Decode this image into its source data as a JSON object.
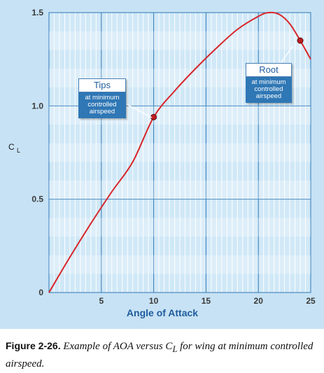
{
  "chart_data": {
    "type": "line",
    "xlabel": "Angle of Attack",
    "ylabel": "CL",
    "ylabel_main": "C",
    "ylabel_sub": "L",
    "xlim": [
      0,
      25
    ],
    "ylim": [
      0,
      1.5
    ],
    "x_ticks": [
      5,
      10,
      15,
      20,
      25
    ],
    "y_ticks": [
      0,
      0.5,
      1.0,
      1.5
    ],
    "x_tick_labels": [
      "5",
      "10",
      "15",
      "20",
      "25"
    ],
    "y_tick_labels": [
      "0",
      "0.5",
      "1.0",
      "1.5"
    ],
    "grid": true,
    "curve_color": "#d8262b",
    "series": [
      {
        "x": [
          0,
          2,
          4,
          6,
          8,
          10,
          12,
          14,
          16,
          18,
          20,
          21,
          22,
          23,
          24,
          25
        ],
        "y": [
          0,
          0.19,
          0.37,
          0.54,
          0.7,
          0.94,
          1.08,
          1.2,
          1.31,
          1.41,
          1.48,
          1.5,
          1.49,
          1.44,
          1.35,
          1.25
        ]
      }
    ],
    "markers": [
      {
        "x": 10,
        "y": 0.94
      },
      {
        "x": 24,
        "y": 1.35
      }
    ],
    "annotations": [
      {
        "title": "Tips",
        "text": "at minimum controlled airspeed"
      },
      {
        "title": "Root",
        "text": "at minimum controlled airspeed"
      }
    ]
  },
  "caption": {
    "figure_number": "Figure 2-26.",
    "text": "Example of AOA versus C",
    "subscript": "L",
    "text_after": " for wing at minimum controlled airspeed."
  },
  "colors": {
    "background": "#c7e2f4",
    "grid_minor": "#ffffff",
    "grid_major": "#2f77b5",
    "curve": "#d8262b",
    "axis_title": "#1f5c9e",
    "callout_fill": "#2f77b5"
  }
}
